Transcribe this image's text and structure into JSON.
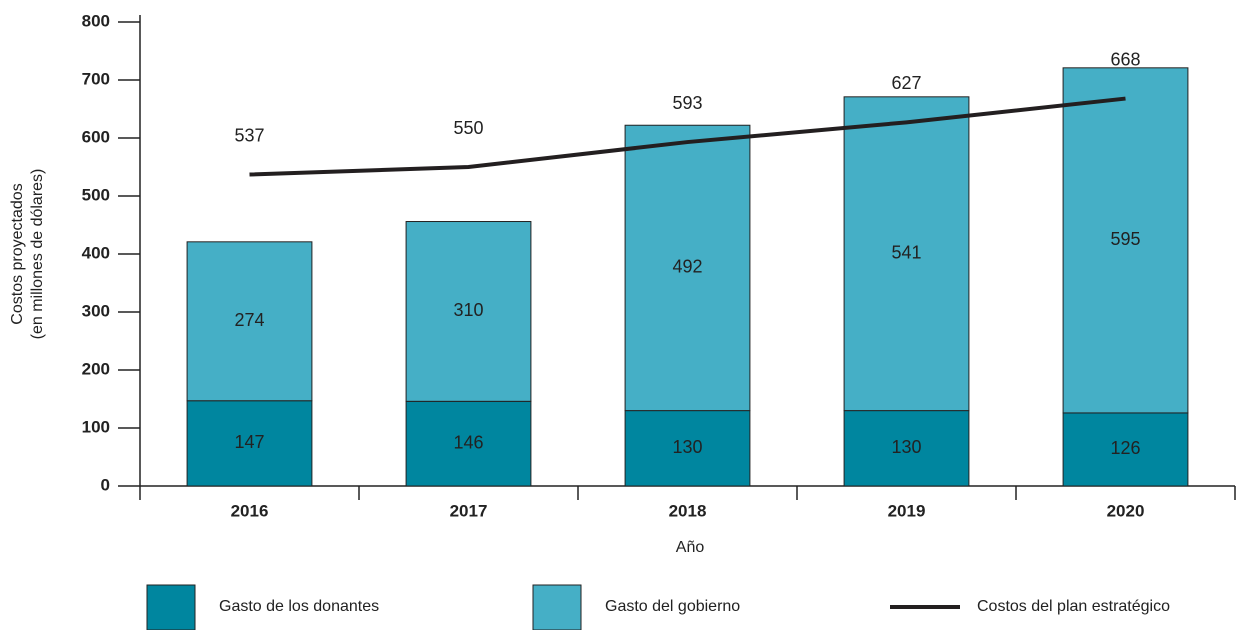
{
  "chart_data": {
    "type": "bar",
    "stacked": true,
    "ylabel": [
      "Costos proyectados",
      "(en millones de dólares)"
    ],
    "xlabel": "Año",
    "categories": [
      "2016",
      "2017",
      "2018",
      "2019",
      "2020"
    ],
    "series": [
      {
        "name": "Gasto de los donantes",
        "color": "#00869f",
        "values": [
          147,
          146,
          130,
          130,
          126
        ]
      },
      {
        "name": "Gasto del gobierno",
        "color": "#45afc6",
        "values": [
          274,
          310,
          492,
          541,
          595
        ]
      },
      {
        "name": "Costos del plan estratégico",
        "type": "line",
        "color": "#231f20",
        "values": [
          537,
          550,
          593,
          627,
          668
        ]
      }
    ],
    "ylim": [
      0,
      800
    ],
    "yticks": [
      0,
      100,
      200,
      300,
      400,
      500,
      600,
      700,
      800
    ]
  }
}
